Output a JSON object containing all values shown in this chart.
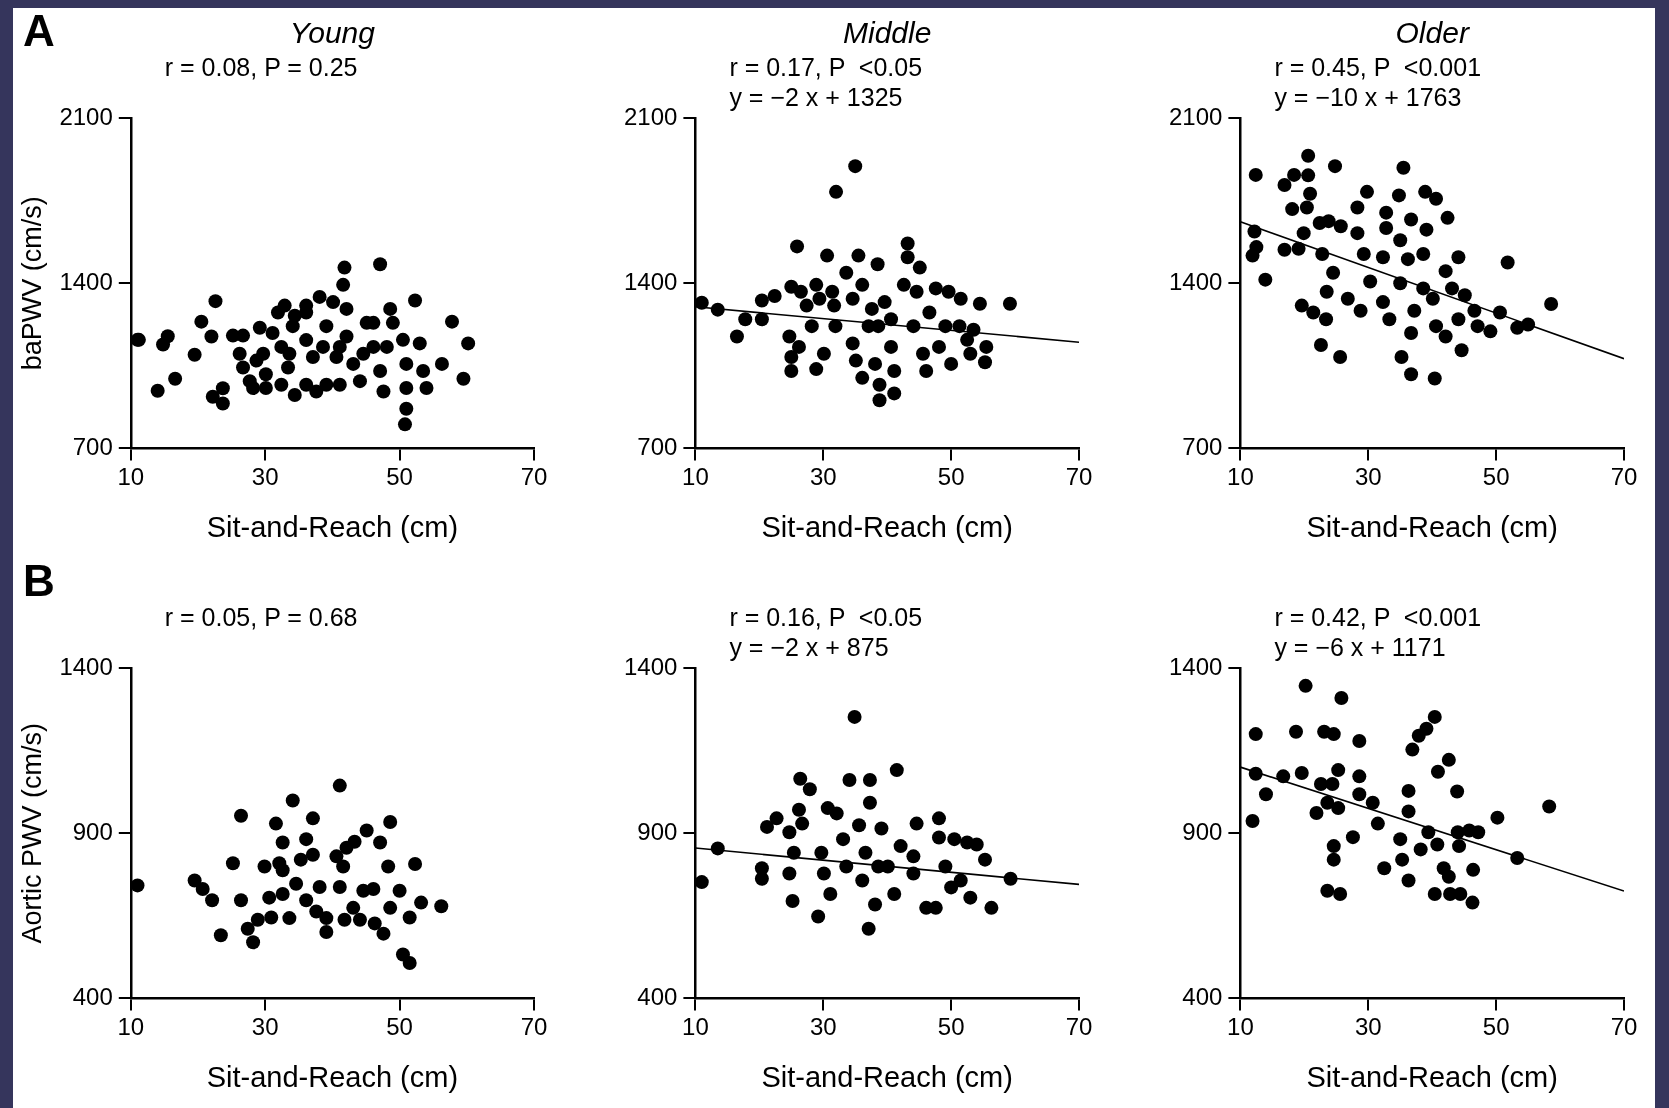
{
  "chart_data": [
    {
      "type": "scatter",
      "title": "Young",
      "xlabel": "Sit-and-Reach (cm)",
      "ylabel": "baPWV (cm/s)",
      "annotations": [
        "A",
        "r = 0.08, P = 0.25"
      ],
      "xlim": [
        10,
        70
      ],
      "ylim": [
        700,
        2100
      ],
      "xticks": [
        10,
        30,
        50,
        70
      ],
      "yticks": [
        700,
        1400,
        2100
      ],
      "marker": "circle",
      "series": [
        {
          "color": "#000000",
          "x": [
            11,
            11.2,
            15.5,
            14.8,
            14,
            16.6,
            19.5,
            20.5,
            22.6,
            22,
            22.2,
            23.7,
            23.7,
            25.2,
            26.7,
            26.2,
            26.7,
            27.7,
            28.2,
            29.2,
            29.7,
            30.1,
            30.1,
            31.9,
            32.9,
            32.4,
            32.4,
            33.4,
            34.4,
            34.4,
            36.1,
            36.1,
            37.1,
            36.1,
            37.6,
            38.1,
            39.1,
            40.1,
            39.1,
            40.6,
            41.1,
            41.6,
            41.8,
            42.1,
            42.1,
            43.1,
            44.1,
            45.1,
            46.1,
            46.1,
            47.1,
            47.1,
            47.6,
            48.6,
            49,
            48.1,
            50.5,
            51,
            51,
            51,
            50.8,
            52.3,
            53,
            53.5,
            54,
            56.3,
            57.8,
            59.5,
            60.2,
            28.7,
            33.6,
            38.6,
            41.1,
            44.6,
            31.1,
            34.1,
            36.1
          ],
          "values": [
            1160,
            1160,
            1175,
            1140,
            944,
            995,
            1097,
            1237,
            1324,
            1174,
            919,
            955,
            890,
            1178,
            1178,
            1101,
            1043,
            985,
            956,
            1211,
            1101,
            1014,
            956,
            1276,
            1305,
            1130,
            970,
            1043,
            1262,
            926,
            1276,
            1159,
            1087,
            970,
            941,
            1342,
            1218,
            1320,
            970,
            1087,
            970,
            1393,
            1466,
            1291,
            1174,
            1058,
            985,
            1232,
            1232,
            1130,
            1480,
            1028,
            941,
            1291,
            1232,
            1130,
            1160,
            1058,
            956,
            868,
            802,
            1327,
            1145,
            1028,
            956,
            1058,
            1237,
            995,
            1145,
            1072,
            1101,
            1130,
            1130,
            1101,
            1189,
            1218,
            1305
          ]
        }
      ]
    },
    {
      "type": "scatter",
      "title": "Middle",
      "xlabel": "Sit-and-Reach (cm)",
      "annotations": [
        "r = 0.17, P  <0.05",
        "y = −2 x + 1325"
      ],
      "xlim": [
        10,
        70
      ],
      "ylim": [
        700,
        2100
      ],
      "xticks": [
        10,
        30,
        50,
        70
      ],
      "yticks": [
        700,
        1400,
        2100
      ],
      "marker": "circle",
      "series": [
        {
          "color": "#000000",
          "x": [
            11,
            13.5,
            16.5,
            17.8,
            20.4,
            20.4,
            22.4,
            25.9,
            25,
            26.5,
            24.7,
            25,
            25,
            28.9,
            28.9,
            30.6,
            32,
            35,
            35.5,
            38.5,
            33.6,
            31.7,
            28.2,
            26.2,
            30.1,
            31.9,
            34.6,
            34.6,
            35.1,
            36.1,
            37.6,
            38.6,
            38.8,
            38.8,
            41.1,
            38.1,
            39.6,
            40.6,
            40.6,
            41.1,
            43.2,
            43.2,
            45.1,
            42.6,
            44.6,
            44.1,
            45.6,
            46.1,
            47.6,
            49.6,
            51.5,
            51.3,
            49.1,
            48.1,
            50,
            52.5,
            53.5,
            54.5,
            55.5,
            55.3,
            53,
            59.2,
            27.4,
            29.4,
            36.1,
            46.6,
            37.1,
            31.4
          ],
          "values": [
            1317,
            1288,
            1174,
            1247,
            1247,
            1327,
            1346,
            1556,
            1385,
            1364,
            1174,
            1087,
            1028,
            1036,
            1393,
            1517,
            1787,
            1896,
            1517,
            1480,
            1444,
            1305,
            1218,
            1130,
            1101,
            1218,
            1334,
            1145,
            1072,
            999,
            1291,
            1218,
            970,
            904,
            933,
            1058,
            1320,
            1247,
            1130,
            1028,
            1568,
            1510,
            1466,
            1393,
            1364,
            1218,
            1101,
            1028,
            1378,
            1364,
            1334,
            1218,
            1218,
            1130,
            1058,
            1160,
            1203,
            1313,
            1130,
            1065,
            1101,
            1313,
            1305,
            1334,
            1393,
            1276,
            1218,
            1364
          ]
        },
        {
          "type": "line",
          "marker": "none",
          "color": "#000000",
          "x": [
            10,
            70
          ],
          "values": [
            1300,
            1150
          ]
        }
      ]
    },
    {
      "type": "scatter",
      "title": "Older",
      "xlabel": "Sit-and-Reach (cm)",
      "annotations": [
        "r = 0.45, P  <0.001",
        "y = −10 x + 1763"
      ],
      "xlim": [
        10,
        70
      ],
      "ylim": [
        700,
        2100
      ],
      "xticks": [
        10,
        30,
        50,
        70
      ],
      "yticks": [
        700,
        1400,
        2100
      ],
      "marker": "circle",
      "series": [
        {
          "color": "#000000",
          "x": [
            12.4,
            12.2,
            12.5,
            11.9,
            13.9,
            16.9,
            18.4,
            20.6,
            20.6,
            20.9,
            18.1,
            20.4,
            19.9,
            16.9,
            19.1,
            22.4,
            24.8,
            23.8,
            25.7,
            22.8,
            24.5,
            23.5,
            19.6,
            21.4,
            23.4,
            22.6,
            25.6,
            26.8,
            28.8,
            28.3,
            29.8,
            28.3,
            29.3,
            30.3,
            32.3,
            33.3,
            32.8,
            32.8,
            32.3,
            35.5,
            34.8,
            35,
            35,
            36.7,
            36.2,
            37.2,
            36.7,
            35.2,
            36.7,
            38.9,
            40.6,
            39.1,
            38.6,
            38.6,
            40.1,
            40.6,
            40.4,
            42.4,
            42.1,
            44.1,
            43.1,
            44.1,
            45.1,
            42.1,
            44.6,
            46.6,
            47.1,
            49.1,
            50.6,
            53.3,
            55,
            51.8,
            58.6
          ],
          "values": [
            1859,
            1619,
            1553,
            1517,
            1415,
            1816,
            1859,
            1940,
            1857,
            1779,
            1714,
            1721,
            1612,
            1542,
            1546,
            1655,
            1896,
            1663,
            1641,
            1524,
            1444,
            1364,
            1305,
            1276,
            1247,
            1138,
            1087,
            1334,
            1283,
            1721,
            1787,
            1612,
            1524,
            1407,
            1320,
            1247,
            1699,
            1634,
            1510,
            1889,
            1772,
            1582,
            1400,
            1670,
            1502,
            1283,
            1189,
            1087,
            1014,
            1787,
            1758,
            1627,
            1524,
            1378,
            1334,
            1218,
            996,
            1677,
            1451,
            1510,
            1378,
            1247,
            1349,
            1174,
            1116,
            1283,
            1218,
            1196,
            1276,
            1211,
            1225,
            1488,
            1312
          ]
        },
        {
          "type": "line",
          "marker": "none",
          "color": "#000000",
          "x": [
            10,
            70
          ],
          "values": [
            1660,
            1080
          ]
        }
      ]
    },
    {
      "type": "scatter",
      "xlabel": "Sit-and-Reach (cm)",
      "ylabel": "Aortic PWV (cm/s)",
      "annotations": [
        "B",
        "r = 0.05, P = 0.68"
      ],
      "xlim": [
        10,
        70
      ],
      "ylim": [
        400,
        1400
      ],
      "xticks": [
        10,
        30,
        50,
        70
      ],
      "yticks": [
        400,
        900,
        1400
      ],
      "marker": "circle",
      "series": [
        {
          "color": "#000000",
          "x": [
            11,
            19.5,
            20.7,
            22.1,
            23.4,
            25.2,
            26.4,
            26.4,
            27.4,
            28.2,
            28.9,
            29.9,
            30.6,
            30.9,
            31.6,
            32.1,
            32.6,
            32.6,
            32.6,
            33.6,
            34.1,
            34.6,
            35.3,
            36.1,
            36.1,
            37.1,
            37.1,
            37.6,
            39.1,
            39.1,
            38.1,
            40.6,
            41.1,
            41.1,
            41.6,
            41.8,
            42.1,
            43.3,
            43.1,
            44.1,
            45.1,
            44.6,
            46.1,
            46.3,
            47.1,
            47.6,
            48.3,
            48.6,
            48.6,
            50,
            50.5,
            51.5,
            51.5,
            52.3,
            53.2,
            56.2
          ],
          "values": [
            742,
            757,
            731,
            697,
            591,
            809,
            953,
            697,
            611,
            570,
            638,
            799,
            705,
            645,
            929,
            809,
            872,
            788,
            716,
            643,
            999,
            747,
            820,
            882,
            697,
            945,
            835,
            663,
            643,
            601,
            737,
            830,
            1044,
            737,
            799,
            638,
            856,
            874,
            674,
            638,
            908,
            726,
            731,
            627,
            872,
            596,
            799,
            934,
            674,
            726,
            533,
            507,
            645,
            807,
            690,
            679
          ]
        }
      ]
    },
    {
      "type": "scatter",
      "xlabel": "Sit-and-Reach (cm)",
      "annotations": [
        "r = 0.16, P  <0.05",
        "y = −2 x + 875"
      ],
      "xlim": [
        10,
        70
      ],
      "ylim": [
        400,
        1400
      ],
      "xticks": [
        10,
        30,
        50,
        70
      ],
      "yticks": [
        400,
        900,
        1400
      ],
      "marker": "circle",
      "series": [
        {
          "color": "#000000",
          "x": [
            11,
            13.5,
            20.4,
            20.4,
            21.2,
            22.7,
            26.4,
            27.9,
            26.2,
            26.7,
            24.7,
            25.4,
            24.7,
            25.2,
            29.2,
            30.7,
            32.1,
            29.7,
            30.1,
            31.1,
            33.1,
            34.1,
            34.9,
            35.6,
            37.3,
            37.3,
            36.6,
            36.1,
            37.1,
            38.1,
            39.1,
            40.1,
            41.5,
            41.1,
            42.1,
            44.1,
            44.6,
            46.1,
            47.6,
            48.1,
            48.1,
            49.1,
            50.5,
            51.5,
            52.5,
            54,
            53,
            55.3,
            56.3,
            59.3,
            33.6,
            38.6,
            44.1,
            50
          ],
          "values": [
            752,
            854,
            794,
            762,
            919,
            945,
            1065,
            1033,
            971,
            929,
            903,
            841,
            778,
            695,
            648,
            976,
            960,
            841,
            778,
            716,
            882,
            1061,
            1252,
            924,
            1061,
            992,
            841,
            757,
            611,
            684,
            914,
            799,
            1091,
            716,
            861,
            778,
            929,
            674,
            674,
            945,
            887,
            799,
            882,
            757,
            872,
            866,
            705,
            820,
            674,
            762,
            799,
            799,
            830,
            736
          ]
        },
        {
          "type": "line",
          "marker": "none",
          "color": "#000000",
          "x": [
            10,
            70
          ],
          "values": [
            855,
            745
          ]
        }
      ]
    },
    {
      "type": "scatter",
      "xlabel": "Sit-and-Reach (cm)",
      "annotations": [
        "r = 0.42, P  <0.001",
        "y = −6 x + 1171"
      ],
      "xlim": [
        10,
        70
      ],
      "ylim": [
        400,
        1400
      ],
      "xticks": [
        10,
        30,
        50,
        70
      ],
      "yticks": [
        400,
        900,
        1400
      ],
      "marker": "circle",
      "series": [
        {
          "color": "#000000",
          "x": [
            12.4,
            12.4,
            14,
            11.9,
            16.7,
            18.7,
            19.6,
            20.2,
            22.6,
            23.1,
            24.6,
            25.8,
            25.3,
            23.6,
            25.3,
            21.9,
            24.4,
            28.6,
            28.6,
            28.6,
            30.7,
            27.6,
            24.6,
            24.6,
            23.6,
            25.6,
            31.5,
            32.5,
            35,
            35.3,
            36.3,
            36.3,
            36.3,
            36.9,
            37.9,
            39.1,
            40.4,
            38.2,
            39.4,
            40.9,
            42.6,
            40.8,
            41.8,
            42.6,
            40.4,
            42.8,
            43.9,
            44,
            44.2,
            45.8,
            44.4,
            46.3,
            46.4,
            47.2,
            50.2,
            53.3,
            58.3
          ],
          "values": [
            1200,
            1080,
            1018,
            937,
            1072,
            1207,
            1082,
            1346,
            1049,
            1207,
            1200,
            1309,
            1091,
            992,
            976,
            961,
            1049,
            1179,
            1072,
            1018,
            992,
            888,
            861,
            820,
            726,
            716,
            929,
            794,
            882,
            820,
            966,
            1028,
            757,
            1153,
            1195,
            1216,
            1252,
            851,
            903,
            1086,
            1122,
            866,
            794,
            768,
            716,
            716,
            1026,
            903,
            861,
            908,
            716,
            690,
            789,
            903,
            947,
            825,
            981
          ]
        },
        {
          "type": "line",
          "marker": "none",
          "color": "#000000",
          "x": [
            10,
            70
          ],
          "values": [
            1100,
            725
          ]
        }
      ]
    }
  ]
}
